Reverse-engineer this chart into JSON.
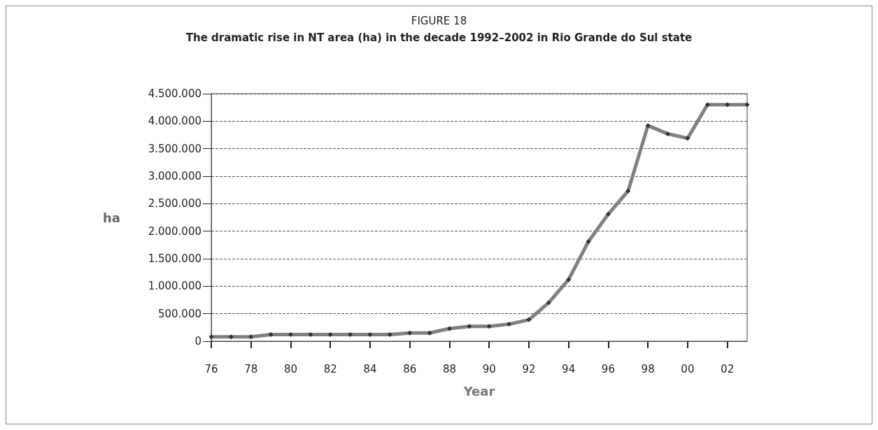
{
  "chart_data": {
    "type": "line",
    "title": "FIGURE 18",
    "subtitle": "The dramatic rise in NT area (ha) in the decade 1992–2002 in Rio Grande do Sul state",
    "xlabel": "Year",
    "ylabel": "ha",
    "categories": [
      "76",
      null,
      "78",
      null,
      "80",
      null,
      "82",
      null,
      "84",
      null,
      "86",
      null,
      "88",
      null,
      "90",
      null,
      "92",
      null,
      "94",
      null,
      "96",
      null,
      "98",
      null,
      "00",
      null,
      "02",
      null
    ],
    "series": [
      {
        "color": "#808080",
        "values": [
          80000,
          80000,
          80000,
          120000,
          120000,
          120000,
          120000,
          120000,
          120000,
          120000,
          150000,
          150000,
          230000,
          270000,
          270000,
          310000,
          390000,
          700000,
          1120000,
          1810000,
          2310000,
          2730000,
          3920000,
          3770000,
          3690000,
          4300000,
          4300000,
          4300000
        ]
      }
    ],
    "ylim": [
      0,
      4500000
    ],
    "yticks": [
      0,
      {
        "value": 500000,
        "label": "500.000"
      },
      {
        "value": 1000000,
        "label": "1.000.000"
      },
      {
        "value": 1500000,
        "label": "1.500.000"
      },
      {
        "value": 2000000,
        "label": "2.000.000"
      },
      {
        "value": 2500000,
        "label": "2.500.000"
      },
      {
        "value": 3000000,
        "label": "3.000.000"
      },
      {
        "value": 3500000,
        "label": "3.500.000"
      },
      {
        "value": 4000000,
        "label": "4.000.000"
      },
      {
        "value": 4500000,
        "label": "4.500.000"
      }
    ],
    "grid": "y",
    "marker": "diamond",
    "line_style": "solid"
  }
}
